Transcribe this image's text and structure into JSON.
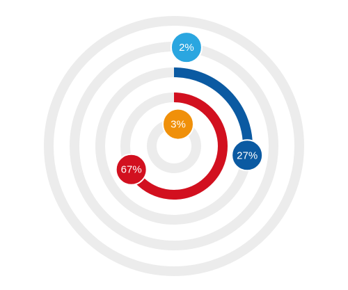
{
  "chart_data": {
    "type": "radial_bar",
    "values": [
      2,
      27,
      67,
      3
    ],
    "value_labels": [
      "2%",
      "27%",
      "67%",
      "3%"
    ],
    "colors": [
      "#2aa6e0",
      "#0b5aa2",
      "#d2101f",
      "#f0900a"
    ],
    "ylim": [
      0,
      100
    ]
  }
}
